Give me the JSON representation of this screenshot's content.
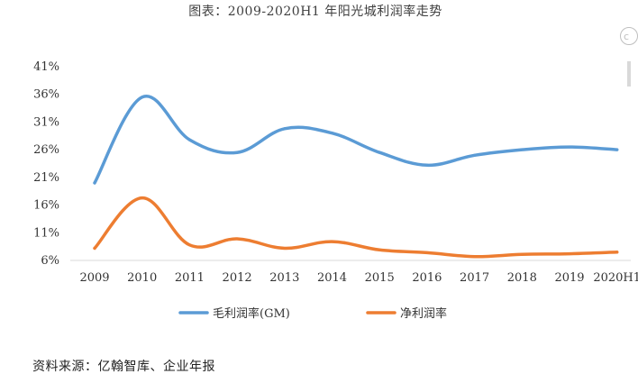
{
  "chart_data": {
    "type": "line",
    "title": "图表：2009-2020H1 年阳光城利润率走势",
    "categories": [
      "2009",
      "2010",
      "2011",
      "2012",
      "2013",
      "2014",
      "2015",
      "2016",
      "2017",
      "2018",
      "2019",
      "2020H1"
    ],
    "y_ticks": [
      "41%",
      "36%",
      "31%",
      "26%",
      "21%",
      "16%",
      "11%",
      "6%"
    ],
    "ylim": [
      6,
      41
    ],
    "grid": false,
    "legend_position": "bottom",
    "series": [
      {
        "name": "毛利润率(GM)",
        "color": "#5b9bd5",
        "values": [
          20.0,
          35.5,
          27.8,
          25.5,
          29.8,
          29.0,
          25.5,
          23.2,
          25.0,
          26.0,
          26.5,
          26.0
        ]
      },
      {
        "name": "净利润率",
        "color": "#ed7d31",
        "values": [
          8.2,
          17.3,
          8.8,
          9.9,
          8.2,
          9.4,
          7.9,
          7.4,
          6.7,
          7.1,
          7.2,
          7.5
        ]
      }
    ],
    "source": "资料来源：亿翰智库、企业年报"
  },
  "icons": {
    "edge_icon": "circle-c-icon"
  }
}
